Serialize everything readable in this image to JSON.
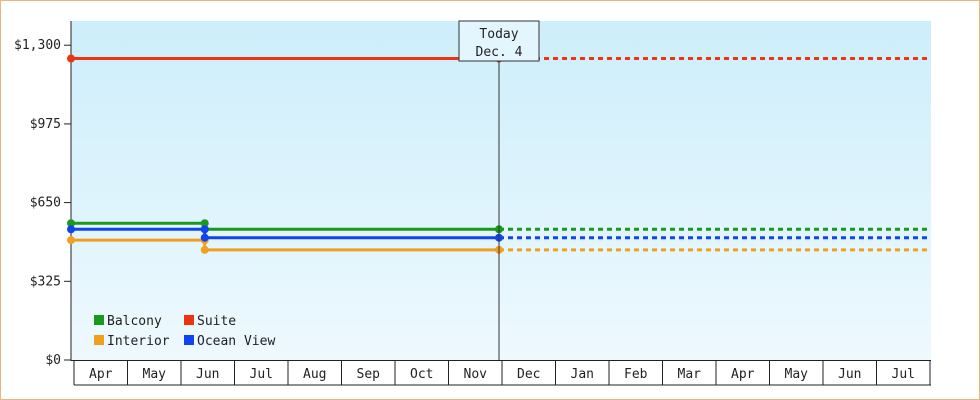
{
  "chart_data": {
    "type": "line",
    "title": "",
    "xlabel": "",
    "ylabel": "",
    "ylim": [
      0,
      1300
    ],
    "y_ticks": [
      "$0",
      "$325",
      "$650",
      "$975",
      "$1,300"
    ],
    "y_tick_values": [
      0,
      325,
      650,
      975,
      1300
    ],
    "x_categories": [
      "Apr",
      "May",
      "Jun",
      "Jul",
      "Aug",
      "Sep",
      "Oct",
      "Nov",
      "Dec",
      "Jan",
      "Feb",
      "Mar",
      "Apr",
      "May",
      "Jun",
      "Jul"
    ],
    "today_label": [
      "Today",
      "Dec. 4"
    ],
    "today_month_index": 8,
    "grid": false,
    "legend_position": "bottom-left",
    "series": [
      {
        "name": "Balcony",
        "color": "#1a9a1a",
        "points": [
          {
            "m": 0,
            "v": 565
          },
          {
            "m": 2.5,
            "v": 565
          },
          {
            "m": 2.5,
            "v": 540
          },
          {
            "m": 8,
            "v": 540
          }
        ],
        "projection": 540
      },
      {
        "name": "Suite",
        "color": "#ee3311",
        "points": [
          {
            "m": 0,
            "v": 1245
          },
          {
            "m": 8,
            "v": 1245
          }
        ],
        "projection": 1245
      },
      {
        "name": "Interior",
        "color": "#f0a020",
        "points": [
          {
            "m": 0,
            "v": 495
          },
          {
            "m": 2.5,
            "v": 495
          },
          {
            "m": 2.5,
            "v": 455
          },
          {
            "m": 8,
            "v": 455
          }
        ],
        "projection": 455
      },
      {
        "name": "Ocean View",
        "color": "#1144ee",
        "points": [
          {
            "m": 0,
            "v": 540
          },
          {
            "m": 2.5,
            "v": 540
          },
          {
            "m": 2.5,
            "v": 505
          },
          {
            "m": 8,
            "v": 505
          }
        ],
        "projection": 505
      }
    ]
  }
}
